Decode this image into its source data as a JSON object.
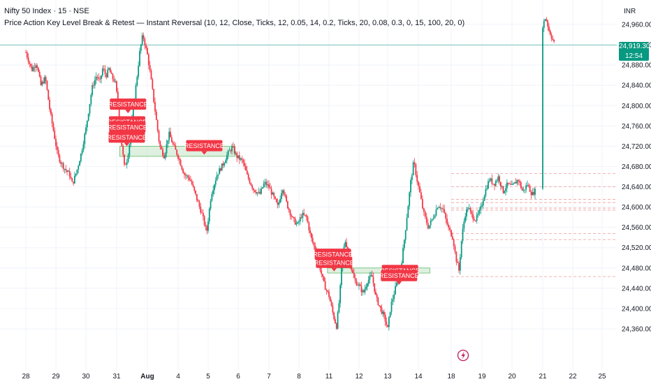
{
  "header": {
    "title": "Nifty 50 Index · 15 · NSE",
    "indicator": "Price Action Key Level Break & Retest — Instant Reversal (10, 12, Close, Ticks, 12, 0.05, 14, 0.2, Ticks, 20, 0.08, 0.3, 0, 15, 100, 20, 0)"
  },
  "price_axis": {
    "currency": "INR",
    "last_price": "24,919.30",
    "countdown": "12:54"
  },
  "colors": {
    "up": "#089981",
    "down": "#f23645",
    "zone_fill": "#c8e6c9",
    "zone_border": "#66bb6a",
    "label_bg": "#f23645",
    "grid": "#f0f3fa"
  },
  "chart_data": {
    "type": "candlestick",
    "symbol": "Nifty 50 Index",
    "interval": "15",
    "exchange": "NSE",
    "x_ticks": [
      "28",
      "29",
      "30",
      "31",
      "Aug",
      "4",
      "5",
      "6",
      "7",
      "8",
      "11",
      "12",
      "13",
      "14",
      "18",
      "19",
      "20",
      "21",
      "22",
      "25"
    ],
    "y_ticks": [
      "24,960.00",
      "24,920.00",
      "24,880.00",
      "24,840.00",
      "24,800.00",
      "24,760.00",
      "24,720.00",
      "24,680.00",
      "24,640.00",
      "24,600.00",
      "24,560.00",
      "24,520.00",
      "24,480.00",
      "24,440.00",
      "24,400.00",
      "24,360.00"
    ],
    "ylim": [
      24330,
      24990
    ],
    "last_price": 24919.3,
    "price_path": [
      [
        28.0,
        24905
      ],
      [
        28.2,
        24870
      ],
      [
        28.35,
        24885
      ],
      [
        28.5,
        24840
      ],
      [
        28.65,
        24855
      ],
      [
        28.8,
        24790
      ],
      [
        28.95,
        24740
      ],
      [
        29.05,
        24705
      ],
      [
        29.15,
        24690
      ],
      [
        29.3,
        24675
      ],
      [
        29.45,
        24665
      ],
      [
        29.55,
        24645
      ],
      [
        29.7,
        24672
      ],
      [
        29.85,
        24708
      ],
      [
        30.0,
        24755
      ],
      [
        30.1,
        24795
      ],
      [
        30.2,
        24835
      ],
      [
        30.35,
        24860
      ],
      [
        30.45,
        24845
      ],
      [
        30.55,
        24875
      ],
      [
        30.65,
        24858
      ],
      [
        30.75,
        24872
      ],
      [
        30.85,
        24855
      ],
      [
        30.95,
        24848
      ],
      [
        31.05,
        24800
      ],
      [
        31.15,
        24730
      ],
      [
        31.25,
        24680
      ],
      [
        31.35,
        24695
      ],
      [
        31.45,
        24740
      ],
      [
        31.55,
        24800
      ],
      [
        31.65,
        24850
      ],
      [
        31.75,
        24905
      ],
      [
        31.85,
        24940
      ],
      [
        32.0,
        24900
      ],
      [
        32.1,
        24860
      ],
      [
        32.25,
        24790
      ],
      [
        32.4,
        24720
      ],
      [
        32.55,
        24700
      ],
      [
        32.7,
        24745
      ],
      [
        32.85,
        24720
      ],
      [
        33.0,
        24700
      ],
      [
        33.2,
        24665
      ],
      [
        33.4,
        24655
      ],
      [
        33.6,
        24620
      ],
      [
        33.8,
        24585
      ],
      [
        33.95,
        24550
      ],
      [
        34.1,
        24625
      ],
      [
        34.3,
        24665
      ],
      [
        34.5,
        24685
      ],
      [
        34.65,
        24705
      ],
      [
        34.8,
        24718
      ],
      [
        34.95,
        24700
      ],
      [
        35.15,
        24690
      ],
      [
        35.3,
        24660
      ],
      [
        35.5,
        24635
      ],
      [
        35.7,
        24625
      ],
      [
        35.85,
        24648
      ],
      [
        36.0,
        24640
      ],
      [
        36.15,
        24620
      ],
      [
        36.3,
        24600
      ],
      [
        36.45,
        24640
      ],
      [
        36.6,
        24605
      ],
      [
        36.8,
        24575
      ],
      [
        36.95,
        24565
      ],
      [
        37.1,
        24585
      ],
      [
        37.25,
        24580
      ],
      [
        37.4,
        24540
      ],
      [
        37.55,
        24515
      ],
      [
        37.7,
        24480
      ],
      [
        37.85,
        24445
      ],
      [
        38.0,
        24425
      ],
      [
        38.15,
        24385
      ],
      [
        38.25,
        24365
      ],
      [
        38.35,
        24420
      ],
      [
        38.45,
        24505
      ],
      [
        38.55,
        24535
      ],
      [
        38.7,
        24490
      ],
      [
        38.85,
        24455
      ],
      [
        39.0,
        24445
      ],
      [
        39.15,
        24430
      ],
      [
        39.3,
        24455
      ],
      [
        39.45,
        24465
      ],
      [
        39.6,
        24420
      ],
      [
        39.75,
        24400
      ],
      [
        39.9,
        24380
      ],
      [
        40.0,
        24360
      ],
      [
        40.1,
        24405
      ],
      [
        40.25,
        24440
      ],
      [
        40.35,
        24460
      ],
      [
        40.45,
        24490
      ],
      [
        40.55,
        24540
      ],
      [
        40.65,
        24595
      ],
      [
        40.75,
        24650
      ],
      [
        40.85,
        24690
      ],
      [
        40.95,
        24655
      ],
      [
        41.05,
        24625
      ],
      [
        41.15,
        24590
      ],
      [
        41.3,
        24560
      ],
      [
        41.45,
        24580
      ],
      [
        41.6,
        24605
      ],
      [
        41.75,
        24595
      ],
      [
        41.9,
        24560
      ],
      [
        42.05,
        24540
      ],
      [
        42.15,
        24500
      ],
      [
        42.25,
        24475
      ],
      [
        42.35,
        24545
      ],
      [
        42.45,
        24585
      ],
      [
        42.55,
        24600
      ],
      [
        42.65,
        24585
      ],
      [
        42.8,
        24575
      ],
      [
        42.95,
        24595
      ],
      [
        43.1,
        24630
      ],
      [
        43.25,
        24655
      ],
      [
        43.4,
        24645
      ],
      [
        43.55,
        24660
      ],
      [
        43.7,
        24630
      ],
      [
        43.85,
        24645
      ],
      [
        44.0,
        24640
      ],
      [
        44.2,
        24655
      ],
      [
        44.35,
        24630
      ],
      [
        44.5,
        24645
      ],
      [
        44.65,
        24625
      ],
      [
        44.75,
        24632
      ],
      [
        45.0,
        24958
      ],
      [
        45.1,
        24975
      ],
      [
        45.2,
        24950
      ],
      [
        45.3,
        24935
      ],
      [
        45.4,
        24919.3
      ]
    ],
    "supply_zones": [
      {
        "start": 31.1,
        "end": 34.9,
        "top": 24720,
        "bottom": 24700
      },
      {
        "start": 37.95,
        "end": 41.35,
        "top": 24480,
        "bottom": 24470
      }
    ],
    "level_lines": [
      24666,
      24640,
      24615,
      24609,
      24598,
      24594,
      24548,
      24536,
      24463
    ],
    "annotations": [
      {
        "text": "RESISTANCE",
        "x": 31.37,
        "price": 24803
      },
      {
        "text": "RESISTANCE",
        "x": 31.34,
        "price": 24768
      },
      {
        "text": "RESISTANCE",
        "x": 31.35,
        "price": 24758
      },
      {
        "text": "RESISTANCE",
        "x": 31.33,
        "price": 24738
      },
      {
        "text": "RESISTANCE",
        "x": 33.87,
        "price": 24721
      },
      {
        "text": "RESISTANCE",
        "x": 38.13,
        "price": 24507
      },
      {
        "text": "RESISTANCE",
        "x": 38.17,
        "price": 24491
      },
      {
        "text": "RESISTANCE",
        "x": 40.4,
        "price": 24475
      },
      {
        "text": "RESISTANCE",
        "x": 40.37,
        "price": 24465
      }
    ]
  }
}
